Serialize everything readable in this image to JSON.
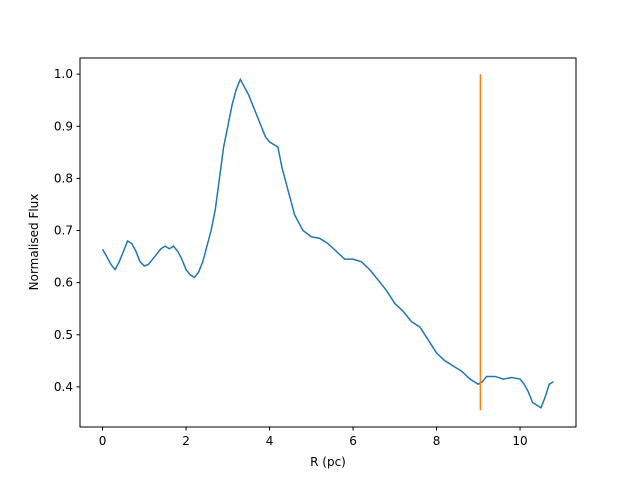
{
  "chart_data": {
    "type": "line",
    "xlabel": "R (pc)",
    "ylabel": "Normalised Flux",
    "xlim": [
      -0.54,
      11.34
    ],
    "ylim": [
      0.323,
      1.031
    ],
    "xticks": [
      0,
      2,
      4,
      6,
      8,
      10
    ],
    "yticks": [
      0.4,
      0.5,
      0.6,
      0.7,
      0.8,
      0.9,
      {
        "value": 1,
        "label": "1.0"
      }
    ],
    "series": [
      {
        "color": "#1f77b4",
        "x": [
          0,
          0.1,
          0.2,
          0.3,
          0.4,
          0.5,
          0.6,
          0.7,
          0.8,
          0.9,
          1.0,
          1.1,
          1.2,
          1.3,
          1.4,
          1.5,
          1.6,
          1.7,
          1.8,
          1.9,
          2.0,
          2.1,
          2.2,
          2.3,
          2.4,
          2.5,
          2.6,
          2.7,
          2.8,
          2.9,
          3.0,
          3.1,
          3.2,
          3.3,
          3.4,
          3.5,
          3.6,
          3.7,
          3.8,
          3.9,
          4.0,
          4.2,
          4.3,
          4.4,
          4.5,
          4.6,
          4.8,
          5.0,
          5.2,
          5.4,
          5.6,
          5.8,
          6.0,
          6.2,
          6.4,
          6.6,
          6.8,
          7.0,
          7.2,
          7.4,
          7.6,
          7.8,
          8.0,
          8.2,
          8.4,
          8.6,
          8.8,
          9.0,
          9.1,
          9.2,
          9.4,
          9.6,
          9.8,
          10.0,
          10.1,
          10.2,
          10.3,
          10.4,
          10.5,
          10.6,
          10.7,
          10.8
        ],
        "values": [
          0.664,
          0.65,
          0.635,
          0.625,
          0.64,
          0.66,
          0.68,
          0.675,
          0.66,
          0.64,
          0.632,
          0.635,
          0.645,
          0.655,
          0.665,
          0.67,
          0.665,
          0.67,
          0.66,
          0.645,
          0.625,
          0.615,
          0.61,
          0.62,
          0.64,
          0.67,
          0.7,
          0.74,
          0.8,
          0.86,
          0.9,
          0.94,
          0.97,
          0.99,
          0.975,
          0.96,
          0.94,
          0.92,
          0.9,
          0.88,
          0.87,
          0.86,
          0.82,
          0.79,
          0.76,
          0.73,
          0.7,
          0.688,
          0.685,
          0.675,
          0.66,
          0.645,
          0.645,
          0.64,
          0.625,
          0.605,
          0.585,
          0.56,
          0.545,
          0.525,
          0.515,
          0.49,
          0.465,
          0.45,
          0.44,
          0.43,
          0.415,
          0.405,
          0.41,
          0.42,
          0.42,
          0.415,
          0.418,
          0.415,
          0.405,
          0.39,
          0.37,
          0.365,
          0.36,
          0.38,
          0.405,
          0.41
        ]
      },
      {
        "color": "#ff7f0e",
        "x": [
          9.05,
          9.05
        ],
        "values": [
          0.355,
          1.0
        ]
      }
    ]
  }
}
